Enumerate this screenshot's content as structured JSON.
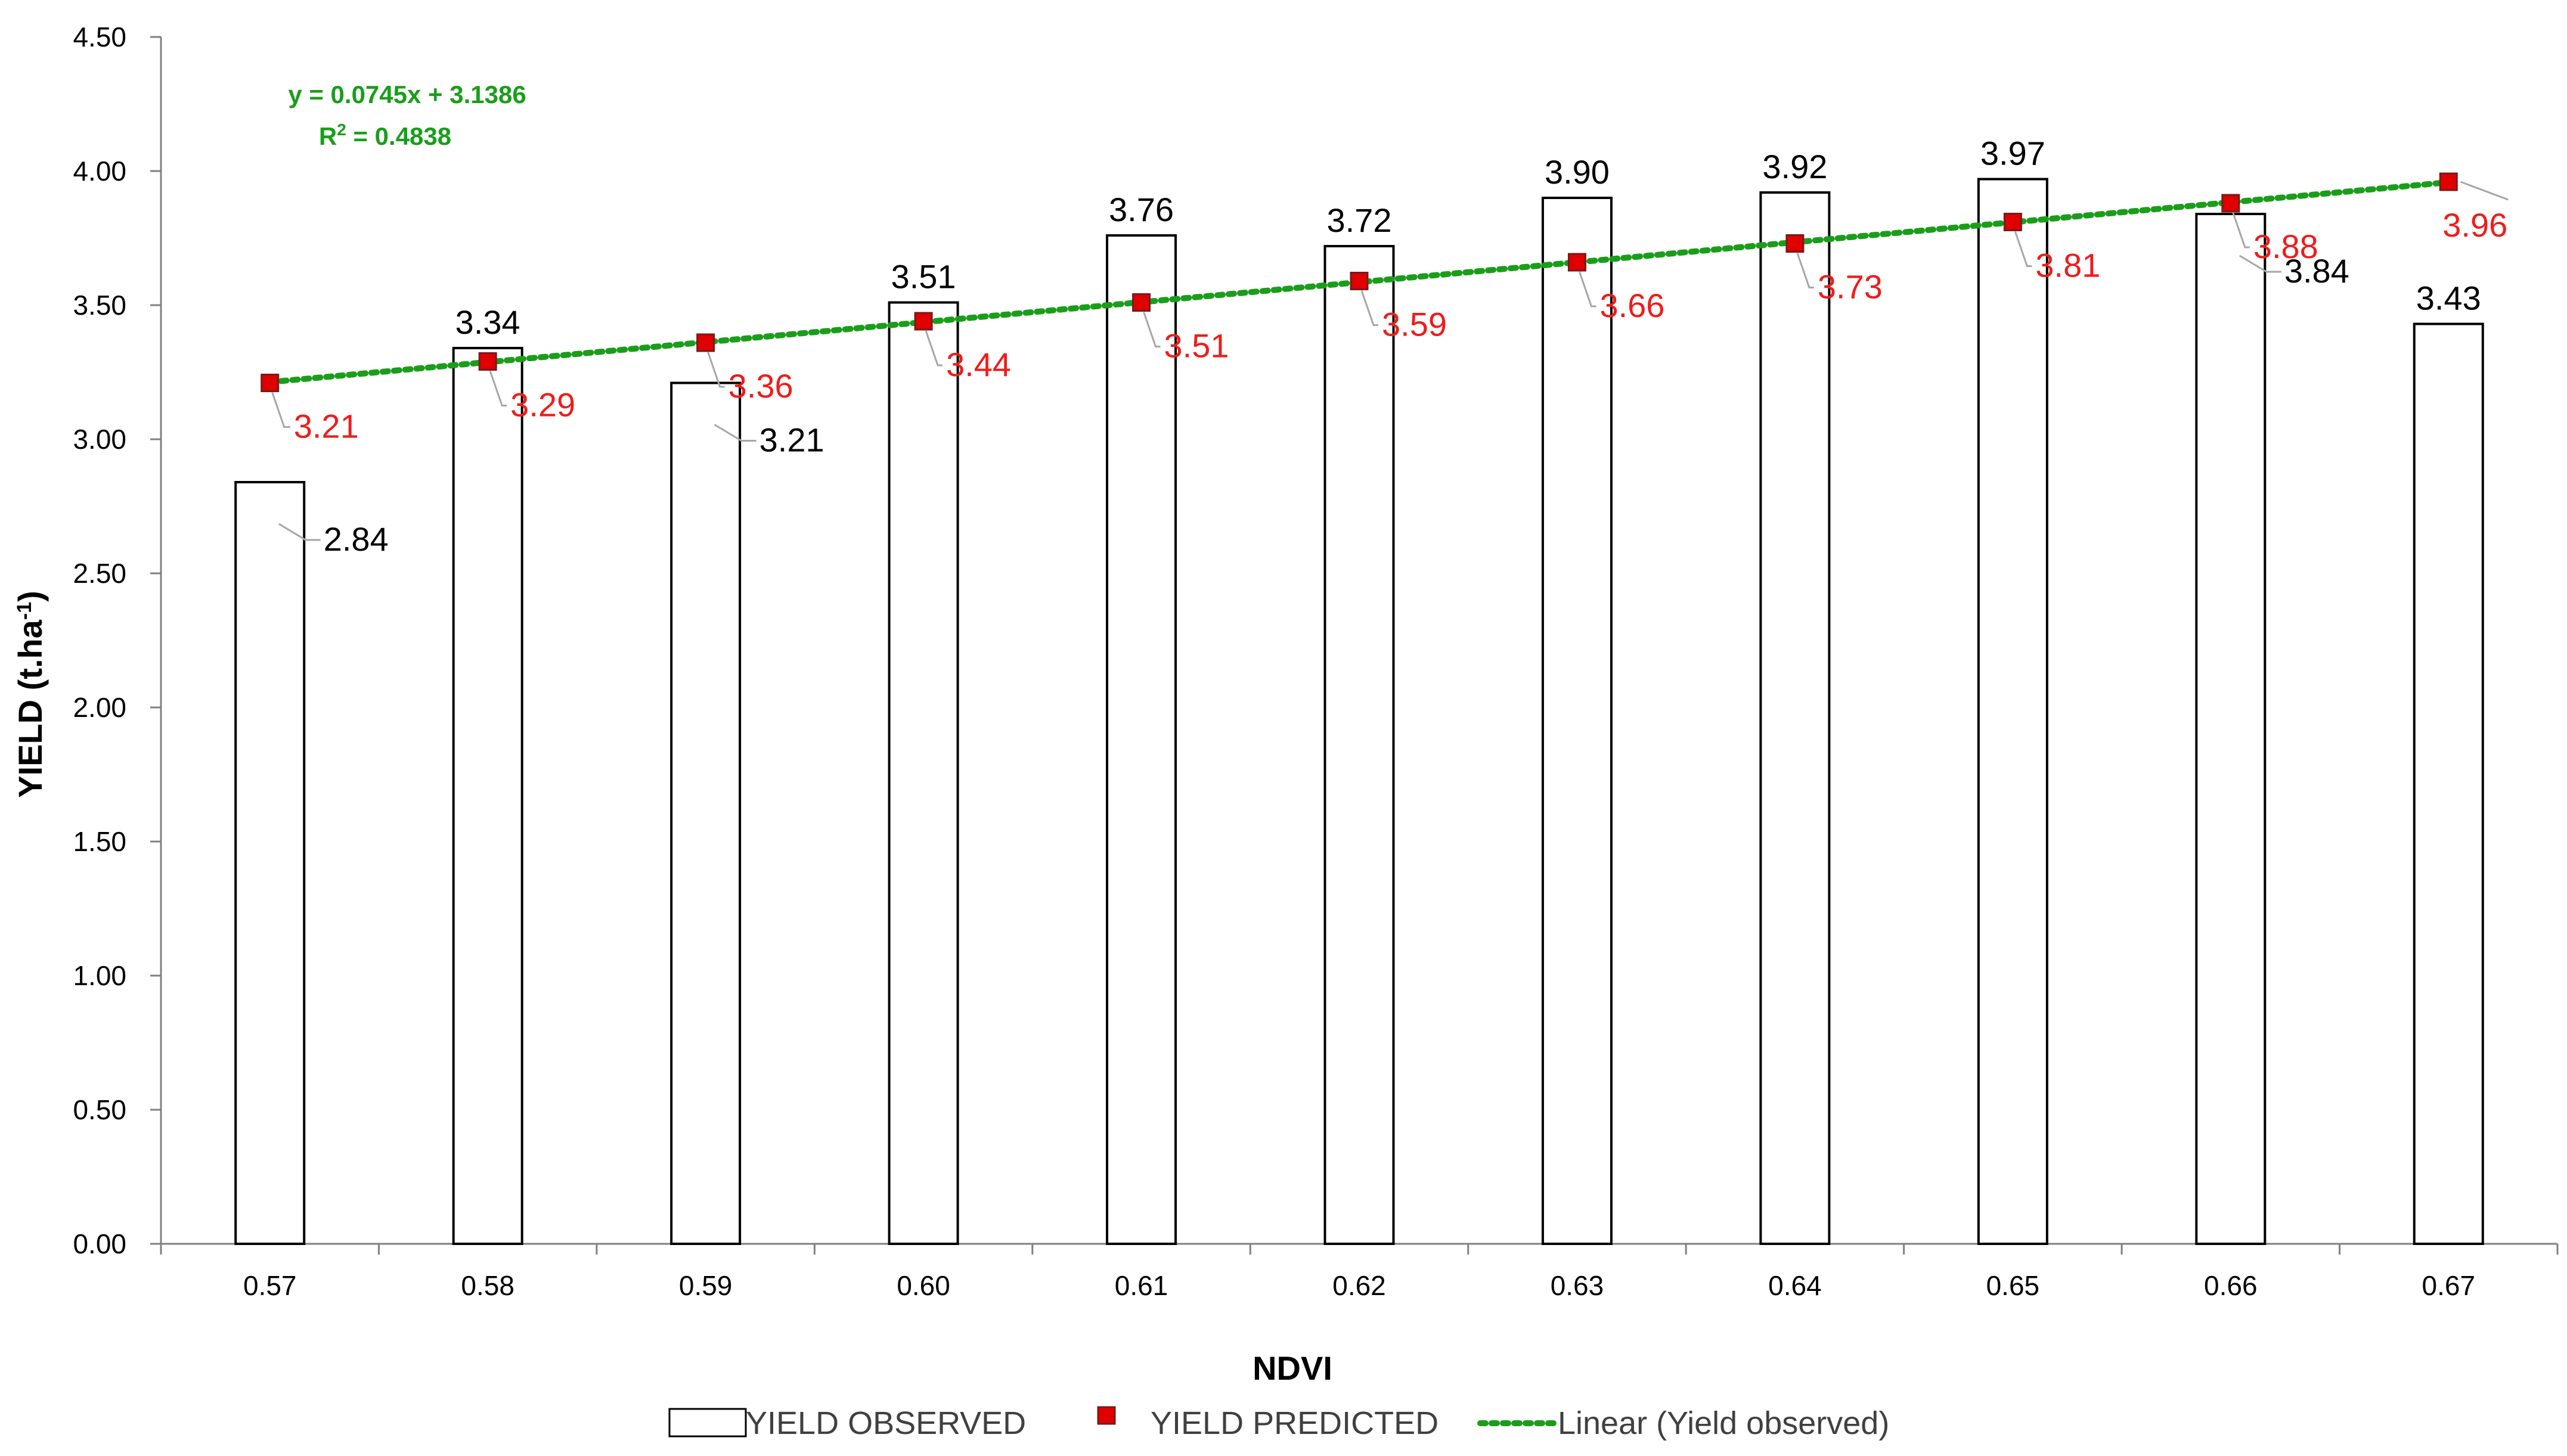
{
  "chart_data": {
    "type": "bar",
    "xlabel": "NDVI",
    "ylabel": "YIELD (t.ha",
    "ylabel_sup": "-1",
    "ylabel_close": ")",
    "categories": [
      "0.57",
      "0.58",
      "0.59",
      "0.60",
      "0.61",
      "0.62",
      "0.63",
      "0.64",
      "0.65",
      "0.66",
      "0.67"
    ],
    "ylim": [
      0,
      4.5
    ],
    "yticks": [
      "0.00",
      "0.50",
      "1.00",
      "1.50",
      "2.00",
      "2.50",
      "3.00",
      "3.50",
      "4.00",
      "4.50"
    ],
    "grid": false,
    "legend_position": "bottom",
    "series": [
      {
        "name": "YIELD OBSERVED",
        "kind": "bar",
        "values": [
          2.84,
          3.34,
          3.21,
          3.51,
          3.76,
          3.72,
          3.9,
          3.92,
          3.97,
          3.84,
          3.43
        ],
        "labels": [
          "2.84",
          "3.34",
          "3.21",
          "3.51",
          "3.76",
          "3.72",
          "3.90",
          "3.92",
          "3.97",
          "3.84",
          "3.43"
        ],
        "fill": "#ffffff",
        "stroke": "#000000"
      },
      {
        "name": "YIELD PREDICTED",
        "kind": "marker",
        "values": [
          3.21,
          3.29,
          3.36,
          3.44,
          3.51,
          3.59,
          3.66,
          3.73,
          3.81,
          3.88,
          3.96
        ],
        "labels": [
          "3.21",
          "3.29",
          "3.36",
          "3.44",
          "3.51",
          "3.59",
          "3.66",
          "3.73",
          "3.81",
          "3.88",
          "3.96"
        ],
        "color": "#e00000",
        "edge": "#7a1a1a"
      },
      {
        "name": "Linear (Yield observed)",
        "kind": "trendline",
        "slope": 0.0745,
        "intercept": 3.1386,
        "color": "#1a9e1a"
      }
    ],
    "annotations": {
      "equation": "y = 0.0745x + 3.1386",
      "r2_prefix": "R",
      "r2_sup": "2",
      "r2_value": " = 0.4838"
    }
  }
}
